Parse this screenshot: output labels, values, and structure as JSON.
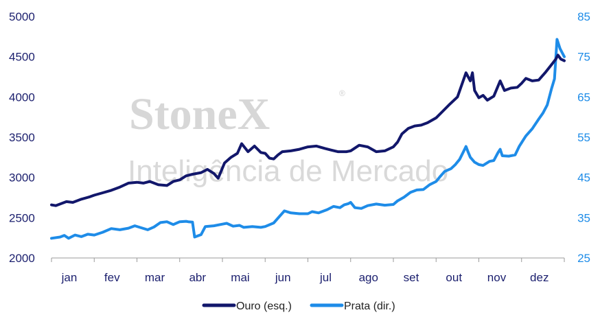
{
  "watermark": {
    "brand": "StoneX",
    "registered": "®",
    "subtitle": "Inteligência de Mercado"
  },
  "colors": {
    "gold": "#12176b",
    "silver": "#1e8ce8",
    "axis_left": "#1b1f6e",
    "axis_right": "#1e8ce8"
  },
  "chart_data": {
    "type": "line",
    "x_categories": [
      "jan",
      "fev",
      "mar",
      "abr",
      "mai",
      "jun",
      "jul",
      "ago",
      "set",
      "out",
      "nov",
      "dez"
    ],
    "y_left": {
      "range": [
        2000,
        5000
      ],
      "ticks": [
        "2000",
        "2500",
        "3000",
        "3500",
        "4000",
        "4500",
        "5000"
      ]
    },
    "y_right": {
      "range": [
        25,
        85
      ],
      "ticks": [
        "25",
        "35",
        "45",
        "55",
        "65",
        "75",
        "85"
      ]
    },
    "grid": false,
    "legend_position": "bottom-center",
    "series": [
      {
        "name": "Ouro (esq.)",
        "axis": "left",
        "color": "#12176b",
        "points": [
          [
            0.0,
            2660
          ],
          [
            0.1,
            2650
          ],
          [
            0.2,
            2670
          ],
          [
            0.35,
            2700
          ],
          [
            0.5,
            2690
          ],
          [
            0.7,
            2730
          ],
          [
            0.9,
            2760
          ],
          [
            1.0,
            2780
          ],
          [
            1.2,
            2810
          ],
          [
            1.4,
            2840
          ],
          [
            1.6,
            2880
          ],
          [
            1.8,
            2930
          ],
          [
            2.0,
            2940
          ],
          [
            2.15,
            2930
          ],
          [
            2.3,
            2950
          ],
          [
            2.5,
            2910
          ],
          [
            2.7,
            2900
          ],
          [
            2.85,
            2950
          ],
          [
            3.0,
            2970
          ],
          [
            3.15,
            3020
          ],
          [
            3.3,
            3040
          ],
          [
            3.5,
            3060
          ],
          [
            3.65,
            3100
          ],
          [
            3.8,
            3050
          ],
          [
            3.9,
            2990
          ],
          [
            4.05,
            3180
          ],
          [
            4.2,
            3250
          ],
          [
            4.35,
            3300
          ],
          [
            4.45,
            3420
          ],
          [
            4.6,
            3320
          ],
          [
            4.75,
            3390
          ],
          [
            4.9,
            3310
          ],
          [
            5.0,
            3300
          ],
          [
            5.1,
            3240
          ],
          [
            5.2,
            3230
          ],
          [
            5.3,
            3280
          ],
          [
            5.4,
            3320
          ],
          [
            5.6,
            3330
          ],
          [
            5.8,
            3350
          ],
          [
            6.0,
            3380
          ],
          [
            6.2,
            3390
          ],
          [
            6.4,
            3360
          ],
          [
            6.55,
            3340
          ],
          [
            6.7,
            3320
          ],
          [
            6.9,
            3320
          ],
          [
            7.0,
            3330
          ],
          [
            7.2,
            3400
          ],
          [
            7.4,
            3380
          ],
          [
            7.6,
            3320
          ],
          [
            7.8,
            3330
          ],
          [
            8.0,
            3380
          ],
          [
            8.1,
            3440
          ],
          [
            8.2,
            3540
          ],
          [
            8.35,
            3610
          ],
          [
            8.5,
            3640
          ],
          [
            8.65,
            3650
          ],
          [
            8.8,
            3680
          ],
          [
            9.0,
            3740
          ],
          [
            9.15,
            3820
          ],
          [
            9.3,
            3900
          ],
          [
            9.5,
            4000
          ],
          [
            9.6,
            4150
          ],
          [
            9.7,
            4300
          ],
          [
            9.8,
            4200
          ],
          [
            9.85,
            4300
          ],
          [
            9.9,
            4080
          ],
          [
            10.0,
            3990
          ],
          [
            10.1,
            4020
          ],
          [
            10.2,
            3960
          ],
          [
            10.35,
            4010
          ],
          [
            10.5,
            4200
          ],
          [
            10.6,
            4080
          ],
          [
            10.75,
            4110
          ],
          [
            10.9,
            4120
          ],
          [
            11.0,
            4170
          ],
          [
            11.1,
            4230
          ],
          [
            11.25,
            4200
          ],
          [
            11.4,
            4210
          ],
          [
            11.55,
            4300
          ],
          [
            11.7,
            4400
          ],
          [
            11.8,
            4470
          ],
          [
            11.85,
            4520
          ],
          [
            11.92,
            4470
          ],
          [
            12.0,
            4450
          ]
        ]
      },
      {
        "name": "Prata (dir.)",
        "axis": "right",
        "color": "#1e8ce8",
        "points": [
          [
            0.0,
            29.9
          ],
          [
            0.2,
            30.2
          ],
          [
            0.3,
            30.6
          ],
          [
            0.4,
            29.9
          ],
          [
            0.55,
            30.7
          ],
          [
            0.7,
            30.3
          ],
          [
            0.85,
            30.9
          ],
          [
            1.0,
            30.7
          ],
          [
            1.2,
            31.4
          ],
          [
            1.4,
            32.3
          ],
          [
            1.6,
            32.0
          ],
          [
            1.8,
            32.4
          ],
          [
            1.95,
            33.0
          ],
          [
            2.1,
            32.5
          ],
          [
            2.25,
            32.0
          ],
          [
            2.4,
            32.7
          ],
          [
            2.55,
            33.8
          ],
          [
            2.7,
            34.0
          ],
          [
            2.85,
            33.3
          ],
          [
            3.0,
            34.0
          ],
          [
            3.15,
            34.1
          ],
          [
            3.2,
            34.0
          ],
          [
            3.3,
            33.9
          ],
          [
            3.35,
            30.2
          ],
          [
            3.5,
            30.8
          ],
          [
            3.6,
            32.8
          ],
          [
            3.8,
            33.0
          ],
          [
            4.0,
            33.4
          ],
          [
            4.1,
            33.6
          ],
          [
            4.25,
            32.9
          ],
          [
            4.4,
            33.1
          ],
          [
            4.5,
            32.6
          ],
          [
            4.7,
            32.8
          ],
          [
            4.9,
            32.6
          ],
          [
            5.0,
            32.8
          ],
          [
            5.2,
            33.7
          ],
          [
            5.35,
            35.5
          ],
          [
            5.45,
            36.7
          ],
          [
            5.6,
            36.2
          ],
          [
            5.8,
            36.0
          ],
          [
            6.0,
            36.0
          ],
          [
            6.1,
            36.5
          ],
          [
            6.25,
            36.2
          ],
          [
            6.45,
            37.0
          ],
          [
            6.6,
            37.8
          ],
          [
            6.75,
            37.5
          ],
          [
            6.85,
            38.2
          ],
          [
            6.95,
            38.5
          ],
          [
            7.0,
            38.8
          ],
          [
            7.1,
            37.5
          ],
          [
            7.25,
            37.3
          ],
          [
            7.4,
            38.0
          ],
          [
            7.6,
            38.4
          ],
          [
            7.8,
            38.1
          ],
          [
            8.0,
            38.3
          ],
          [
            8.1,
            39.2
          ],
          [
            8.25,
            40.1
          ],
          [
            8.4,
            41.3
          ],
          [
            8.55,
            41.9
          ],
          [
            8.7,
            42.0
          ],
          [
            8.85,
            43.2
          ],
          [
            9.0,
            44.0
          ],
          [
            9.1,
            45.3
          ],
          [
            9.2,
            46.5
          ],
          [
            9.35,
            47.2
          ],
          [
            9.45,
            48.2
          ],
          [
            9.55,
            49.5
          ],
          [
            9.65,
            51.6
          ],
          [
            9.7,
            52.7
          ],
          [
            9.75,
            51.3
          ],
          [
            9.8,
            50.0
          ],
          [
            9.9,
            48.8
          ],
          [
            10.0,
            48.2
          ],
          [
            10.1,
            48.0
          ],
          [
            10.25,
            49.0
          ],
          [
            10.35,
            49.2
          ],
          [
            10.45,
            51.2
          ],
          [
            10.5,
            52.0
          ],
          [
            10.55,
            50.4
          ],
          [
            10.7,
            50.3
          ],
          [
            10.85,
            50.6
          ],
          [
            10.95,
            52.8
          ],
          [
            11.1,
            55.3
          ],
          [
            11.25,
            57.1
          ],
          [
            11.4,
            59.5
          ],
          [
            11.5,
            61.0
          ],
          [
            11.6,
            63.0
          ],
          [
            11.7,
            67.0
          ],
          [
            11.77,
            69.5
          ],
          [
            11.83,
            79.3
          ],
          [
            11.9,
            77.0
          ],
          [
            12.0,
            75.0
          ]
        ]
      }
    ]
  }
}
